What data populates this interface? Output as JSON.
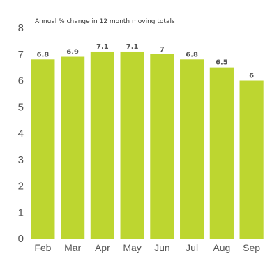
{
  "chart_data": {
    "type": "bar",
    "title": "Annual % change in 12 month moving totals",
    "xlabel": "",
    "ylabel": "",
    "categories": [
      "Feb",
      "Mar",
      "Apr",
      "May",
      "Jun",
      "Jul",
      "Aug",
      "Sep"
    ],
    "values": [
      6.8,
      6.9,
      7.1,
      7.1,
      7,
      6.8,
      6.5,
      6
    ],
    "data_labels": [
      "6.8",
      "6.9",
      "7.1",
      "7.1",
      "7",
      "6.8",
      "6.5",
      "6"
    ],
    "yticks": [
      "0",
      "1",
      "2",
      "3",
      "4",
      "5",
      "6",
      "7",
      "8"
    ],
    "ylim": [
      0,
      8
    ],
    "grid": false,
    "bar_color": "#bdd630",
    "axis_color": "#666666"
  }
}
